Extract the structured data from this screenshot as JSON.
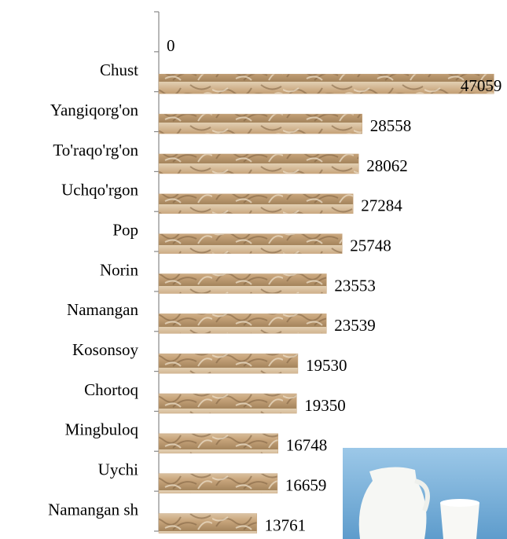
{
  "chart_data": {
    "type": "bar",
    "orientation": "horizontal",
    "categories": [
      null,
      "Chust",
      "Yangiqorg'on",
      "To'raqo'rg'on",
      "Uchqo'rgon",
      "Pop",
      "Norin",
      "Namangan",
      "Kosonsoy",
      "Chortoq",
      "Mingbuloq",
      "Uychi",
      "Namangan sh"
    ],
    "values": [
      0,
      47059,
      28558,
      28062,
      27284,
      25748,
      23553,
      23539,
      19530,
      19350,
      16748,
      16659,
      13761
    ],
    "color": "#c8a57c",
    "xlim": [
      0,
      50000
    ]
  }
}
